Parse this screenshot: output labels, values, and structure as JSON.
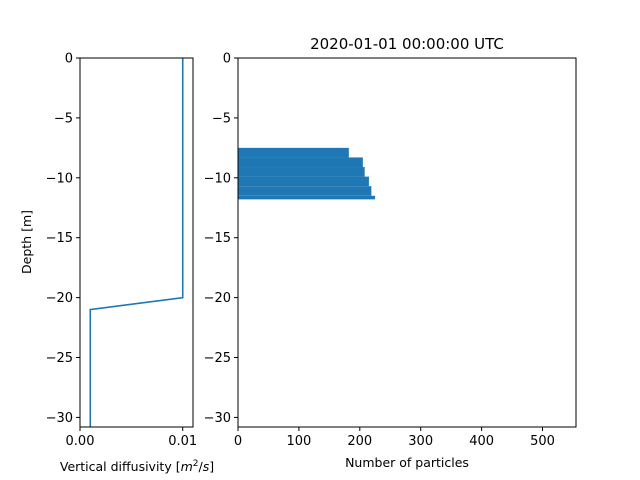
{
  "chart_data": [
    {
      "type": "line",
      "xlabel": "Vertical diffusivity [m^2/s]",
      "xlabel_parts": {
        "pre": "Vertical diffusivity [",
        "m": "m",
        "exp": "2",
        "post": "/",
        "s": "s",
        "end": "]"
      },
      "ylabel": "Depth [m]",
      "xlim": [
        0.0,
        0.011
      ],
      "ylim": [
        -30.8,
        0
      ],
      "xticks": [
        0.0,
        0.01
      ],
      "xtick_labels": [
        "0.00",
        "0.01"
      ],
      "yticks": [
        0,
        -5,
        -10,
        -15,
        -20,
        -25,
        -30
      ],
      "ytick_labels": [
        "0",
        "−5",
        "−10",
        "−15",
        "−20",
        "−25",
        "−30"
      ],
      "grid": false,
      "color": "#1f77b4",
      "series": [
        {
          "x": [
            0.01,
            0.01,
            0.001,
            0.001
          ],
          "y": [
            0,
            -20,
            -21,
            -30.8
          ]
        }
      ]
    },
    {
      "type": "bar",
      "orientation": "horizontal",
      "title": "2020-01-01 00:00:00 UTC",
      "xlabel": "Number of particles",
      "xlim": [
        0,
        555
      ],
      "ylim": [
        -30.8,
        0
      ],
      "xticks": [
        0,
        100,
        200,
        300,
        400,
        500
      ],
      "xtick_labels": [
        "0",
        "100",
        "200",
        "300",
        "400",
        "500"
      ],
      "yticks": [
        0,
        -5,
        -10,
        -15,
        -20,
        -25,
        -30
      ],
      "ytick_labels": [
        "0",
        "−5",
        "−10",
        "−15",
        "−20",
        "−25",
        "−30"
      ],
      "grid": false,
      "color": "#1f77b4",
      "bins": [
        {
          "y_top": -7.5,
          "y_bottom": -8.3,
          "value": 182
        },
        {
          "y_top": -8.3,
          "y_bottom": -9.1,
          "value": 205
        },
        {
          "y_top": -9.1,
          "y_bottom": -9.9,
          "value": 208
        },
        {
          "y_top": -9.9,
          "y_bottom": -10.7,
          "value": 215
        },
        {
          "y_top": -10.7,
          "y_bottom": -11.5,
          "value": 219
        },
        {
          "y_top": -11.5,
          "y_bottom": -11.8,
          "value": 225
        }
      ]
    }
  ]
}
